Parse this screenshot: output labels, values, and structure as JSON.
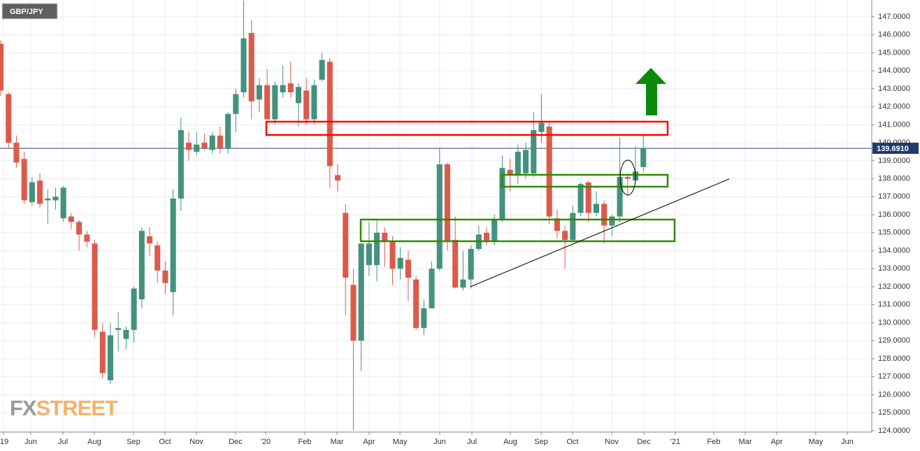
{
  "chart_data": {
    "type": "candlestick",
    "title": "GBP/JPY",
    "watermark": [
      "FX",
      "STREET"
    ],
    "up_color": "#44917d",
    "down_color": "#dd5a4b",
    "grid": true,
    "x": [
      0,
      1,
      2,
      3,
      4,
      5,
      6,
      7,
      8,
      9,
      10,
      11,
      12,
      13,
      14,
      15,
      16,
      17,
      18,
      19,
      20,
      21,
      22,
      23,
      24,
      25,
      26,
      27,
      28,
      29,
      30,
      31,
      32,
      33,
      34,
      35,
      36,
      37,
      38,
      39,
      40,
      41,
      42,
      43,
      44,
      45,
      46,
      47,
      48,
      49,
      50,
      51,
      52,
      53,
      54,
      55,
      56,
      57,
      58,
      59,
      60,
      61,
      62,
      63,
      64,
      65,
      66,
      67,
      68,
      69,
      70,
      71,
      72,
      73,
      74,
      75,
      76,
      77,
      78,
      79,
      80,
      81,
      82
    ],
    "open": [
      145.5,
      142.7,
      140.0,
      139.1,
      136.7,
      137.9,
      136.8,
      136.8,
      135.8,
      135.9,
      135.6,
      134.9,
      134.4,
      129.5,
      126.8,
      129.6,
      129.1,
      129.6,
      131.3,
      134.8,
      134.3,
      132.9,
      131.7,
      136.9,
      140.0,
      139.5,
      140.0,
      139.6,
      140.4,
      139.7,
      141.6,
      142.8,
      146.1,
      142.4,
      143.2,
      141.3,
      142.8,
      143.3,
      142.2,
      142.9,
      141.3,
      143.5,
      144.5,
      138.2,
      136.1,
      132.1,
      129.0,
      133.2,
      133.2,
      135.0,
      134.5,
      133.0,
      133.5,
      132.4,
      129.7,
      130.8,
      133.0,
      138.8,
      134.6,
      131.95,
      132.4,
      134.1,
      135.0,
      134.5,
      135.7,
      138.5,
      138.2,
      138.3,
      138.3,
      140.6,
      140.9,
      135.8,
      135.1,
      134.6,
      136.1,
      137.8,
      136.1,
      136.6,
      135.4,
      135.9,
      138.1,
      137.9,
      138.65
    ],
    "high": [
      145.7,
      142.8,
      140.4,
      139.5,
      138.1,
      138.3,
      137.4,
      137.5,
      137.6,
      136.1,
      135.7,
      135.1,
      134.6,
      130.0,
      130.0,
      130.6,
      129.8,
      132.0,
      135.3,
      135.3,
      134.5,
      133.4,
      137.4,
      141.4,
      140.6,
      140.6,
      140.5,
      140.6,
      140.9,
      141.7,
      143.0,
      147.9,
      146.8,
      143.6,
      144.1,
      143.4,
      144.3,
      144.5,
      143.3,
      143.6,
      143.5,
      145.0,
      144.7,
      138.8,
      136.6,
      133.0,
      134.4,
      135.6,
      135.7,
      135.3,
      134.8,
      134.2,
      134.0,
      132.6,
      131.3,
      133.4,
      139.7,
      138.9,
      135.9,
      134.0,
      134.3,
      135.4,
      135.3,
      136.0,
      139.3,
      139.1,
      139.9,
      140.0,
      141.7,
      142.7,
      141.1,
      136.3,
      135.4,
      136.5,
      137.8,
      137.9,
      137.3,
      136.8,
      136.0,
      140.3,
      138.3,
      139.8,
      140.4
    ],
    "low": [
      142.6,
      139.7,
      138.6,
      136.6,
      136.5,
      136.4,
      135.5,
      136.3,
      135.6,
      135.2,
      134.0,
      134.2,
      129.2,
      126.9,
      126.6,
      128.4,
      128.5,
      128.9,
      130.8,
      133.7,
      132.2,
      131.6,
      130.4,
      136.2,
      139.0,
      139.3,
      139.6,
      139.4,
      139.4,
      139.4,
      140.6,
      142.5,
      141.3,
      141.7,
      141.3,
      141.0,
      142.5,
      142.5,
      140.9,
      141.0,
      141.0,
      143.4,
      137.5,
      137.3,
      130.4,
      124.0,
      127.3,
      132.6,
      132.3,
      133.1,
      132.1,
      132.4,
      131.2,
      129.6,
      129.3,
      130.8,
      132.9,
      134.0,
      131.9,
      131.8,
      131.9,
      134.0,
      134.3,
      134.3,
      135.6,
      137.3,
      137.7,
      138.0,
      138.1,
      140.0,
      135.5,
      134.7,
      133.0,
      134.5,
      135.9,
      135.6,
      135.9,
      134.4,
      134.8,
      135.6,
      137.1,
      137.8,
      138.4
    ],
    "close": [
      142.9,
      140.0,
      138.9,
      136.8,
      137.8,
      136.6,
      136.9,
      137.0,
      137.5,
      135.6,
      134.9,
      134.5,
      129.6,
      127.2,
      129.3,
      129.7,
      129.6,
      131.9,
      135.1,
      134.4,
      132.9,
      132.2,
      136.9,
      140.7,
      139.6,
      139.9,
      139.7,
      140.4,
      139.7,
      141.6,
      142.7,
      145.8,
      142.3,
      143.2,
      141.3,
      143.2,
      143.2,
      142.8,
      143.1,
      141.3,
      143.2,
      144.6,
      138.7,
      137.9,
      132.5,
      129.0,
      134.4,
      134.4,
      135.0,
      134.5,
      133.0,
      133.6,
      132.5,
      129.7,
      130.8,
      133.0,
      138.8,
      134.5,
      131.95,
      132.4,
      134.1,
      134.9,
      134.5,
      135.7,
      138.6,
      138.2,
      139.5,
      139.6,
      140.7,
      141.1,
      135.9,
      135.1,
      134.6,
      136.1,
      137.7,
      136.1,
      136.6,
      135.4,
      135.9,
      138.1,
      138.0,
      138.4,
      139.691
    ],
    "last_price": {
      "value": 139.691,
      "label": "139.6910"
    },
    "xlim": [
      -0.09,
      111.15
    ],
    "xticks": [
      {
        "value": 0.36,
        "label": "'19"
      },
      {
        "value": 3.84,
        "label": "Jun"
      },
      {
        "value": 7.94,
        "label": "Jul"
      },
      {
        "value": 11.95,
        "label": "Aug"
      },
      {
        "value": 16.95,
        "label": "Sep"
      },
      {
        "value": 20.96,
        "label": "Oct"
      },
      {
        "value": 24.98,
        "label": "Nov"
      },
      {
        "value": 29.97,
        "label": "Dec"
      },
      {
        "value": 33.81,
        "label": "'20"
      },
      {
        "value": 38.8,
        "label": "Feb"
      },
      {
        "value": 42.91,
        "label": "Mar"
      },
      {
        "value": 47.01,
        "label": "Apr"
      },
      {
        "value": 50.94,
        "label": "May"
      },
      {
        "value": 56.02,
        "label": "Jun"
      },
      {
        "value": 60.13,
        "label": "Jul"
      },
      {
        "value": 65.03,
        "label": "Aug"
      },
      {
        "value": 68.96,
        "label": "Sep"
      },
      {
        "value": 72.97,
        "label": "Oct"
      },
      {
        "value": 77.97,
        "label": "Nov"
      },
      {
        "value": 82.07,
        "label": "Dec"
      },
      {
        "value": 86.08,
        "label": "'21"
      },
      {
        "value": 90.99,
        "label": "Feb"
      },
      {
        "value": 95.0,
        "label": "Mar"
      },
      {
        "value": 99.02,
        "label": "Apr"
      },
      {
        "value": 104.0,
        "label": "May"
      },
      {
        "value": 108.03,
        "label": "Jun"
      }
    ],
    "ylim": [
      123.92,
      147.93
    ],
    "yticks": [
      {
        "value": 124,
        "label": "124.0000"
      },
      {
        "value": 125,
        "label": "125.0000"
      },
      {
        "value": 126,
        "label": "126.0000"
      },
      {
        "value": 127,
        "label": "127.0000"
      },
      {
        "value": 128,
        "label": "128.0000"
      },
      {
        "value": 129,
        "label": "129.0000"
      },
      {
        "value": 130,
        "label": "130.0000"
      },
      {
        "value": 131,
        "label": "131.0000"
      },
      {
        "value": 132,
        "label": "132.0000"
      },
      {
        "value": 133,
        "label": "133.0000"
      },
      {
        "value": 134,
        "label": "134.0000"
      },
      {
        "value": 135,
        "label": "135.0000"
      },
      {
        "value": 136,
        "label": "136.0000"
      },
      {
        "value": 137,
        "label": "137.0000"
      },
      {
        "value": 138,
        "label": "138.0000"
      },
      {
        "value": 139,
        "label": "139.0000"
      },
      {
        "value": 140,
        "label": "140.0000"
      },
      {
        "value": 141,
        "label": "141.0000"
      },
      {
        "value": 142,
        "label": "142.0000"
      },
      {
        "value": 143,
        "label": "143.0000"
      },
      {
        "value": 144,
        "label": "144.0000"
      },
      {
        "value": 145,
        "label": "145.0000"
      },
      {
        "value": 146,
        "label": "146.0000"
      },
      {
        "value": 147,
        "label": "147.0000"
      }
    ]
  }
}
